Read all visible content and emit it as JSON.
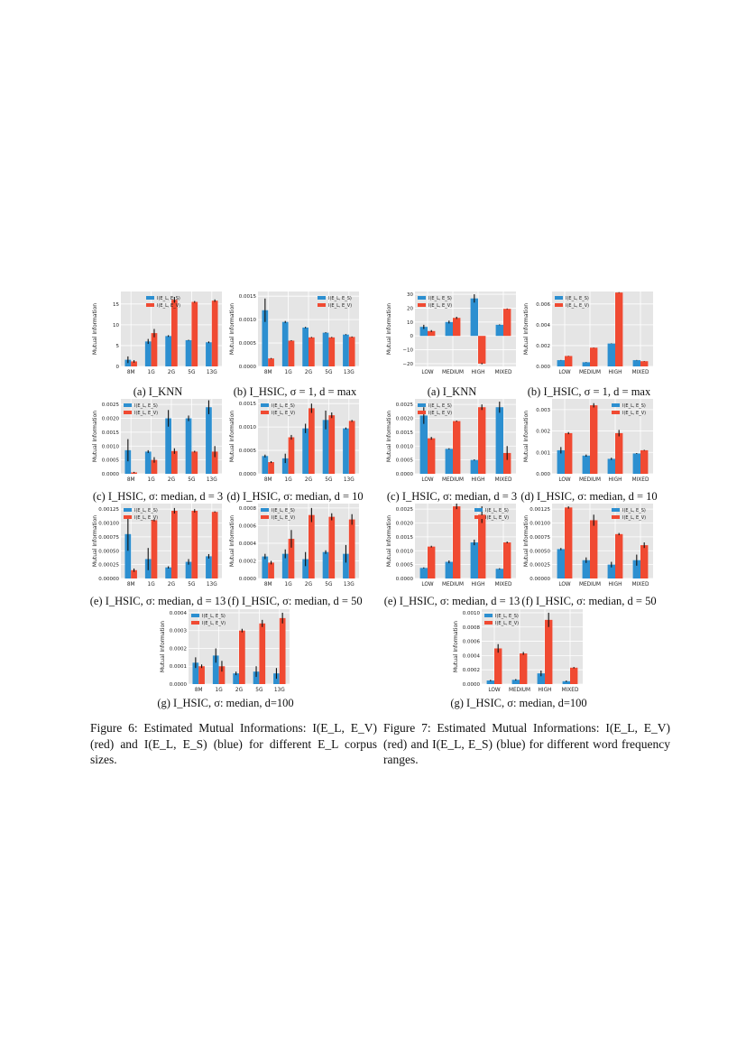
{
  "colors": {
    "blue": "#2c8fd0",
    "red": "#f04a32",
    "bg": "#e5e5e5",
    "grid": "#ffffff",
    "error": "#111111"
  },
  "figure6": {
    "caption": "Figure 6: Estimated Mutual Informations: I(E_L, E_V) (red) and I(E_L, E_S) (blue) for different E_L corpus sizes."
  },
  "figure7": {
    "caption": "Figure 7: Estimated Mutual Informations: I(E_L, E_V) (red) and I(E_L, E_S) (blue) for different word frequency ranges."
  },
  "chart_data": [
    {
      "id": "f6a",
      "figure": "Figure 6",
      "caption": "(a) I_KNN",
      "type": "bar",
      "categories": [
        "8M",
        "1G",
        "2G",
        "5G",
        "13G"
      ],
      "ylabel": "Mutual Information",
      "ylim": [
        0,
        18
      ],
      "yticks": [
        "0",
        "5",
        "10",
        "15"
      ],
      "legend": [
        "I(E_L, E_S)",
        "I(E_L, E_V)"
      ],
      "legend_loc": "top-center",
      "series": [
        {
          "name": "I(E_L, E_S)",
          "values": [
            1.6,
            6.0,
            7.3,
            6.3,
            5.8
          ],
          "errors": [
            0.8,
            0.6,
            0.2,
            0.1,
            0.2
          ]
        },
        {
          "name": "I(E_L, E_V)",
          "values": [
            1.2,
            8.0,
            16.0,
            15.5,
            15.8
          ],
          "errors": [
            0.3,
            1.0,
            0.7,
            0.2,
            0.3
          ]
        }
      ]
    },
    {
      "id": "f6b",
      "figure": "Figure 6",
      "caption": "(b) I_HSIC, σ = 1, d = max",
      "type": "bar",
      "categories": [
        "8M",
        "1G",
        "2G",
        "5G",
        "13G"
      ],
      "ylabel": "Mutual Information",
      "ylim": [
        0,
        0.0016
      ],
      "yticks": [
        "0.0000",
        "0.0005",
        "0.0010",
        "0.0015"
      ],
      "legend": [
        "I(E_L, E_S)",
        "I(E_L, E_V)"
      ],
      "legend_loc": "top-right",
      "series": [
        {
          "name": "I(E_L, E_S)",
          "values": [
            0.0012,
            0.00095,
            0.00083,
            0.00072,
            0.00068
          ],
          "errors": [
            0.00025,
            2e-05,
            1.5e-05,
            1e-05,
            1e-05
          ]
        },
        {
          "name": "I(E_L, E_V)",
          "values": [
            0.00017,
            0.00055,
            0.00062,
            0.00062,
            0.00063
          ],
          "errors": [
            1e-05,
            1e-05,
            1e-05,
            1e-05,
            1e-05
          ]
        }
      ]
    },
    {
      "id": "f6c",
      "figure": "Figure 6",
      "caption": "(c) I_HSIC, σ: median, d = 3",
      "type": "bar",
      "categories": [
        "8M",
        "1G",
        "2G",
        "5G",
        "13G"
      ],
      "ylabel": "Mutual Information",
      "ylim": [
        0,
        0.0027
      ],
      "yticks": [
        "0.0000",
        "0.0005",
        "0.0010",
        "0.0015",
        "0.0020",
        "0.0025"
      ],
      "legend": [
        "I(E_L, E_S)",
        "I(E_L, E_V)"
      ],
      "legend_loc": "top-left",
      "series": [
        {
          "name": "I(E_L, E_S)",
          "values": [
            0.00085,
            0.0008,
            0.002,
            0.002,
            0.0024
          ],
          "errors": [
            0.0004,
            5e-05,
            0.0003,
            0.0001,
            0.00025
          ]
        },
        {
          "name": "I(E_L, E_V)",
          "values": [
            5e-05,
            0.0005,
            0.00082,
            0.0008,
            0.0008
          ],
          "errors": [
            2e-05,
            0.0001,
            0.0001,
            3e-05,
            0.0002
          ]
        }
      ]
    },
    {
      "id": "f6d",
      "figure": "Figure 6",
      "caption": "(d) I_HSIC, σ: median, d = 10",
      "type": "bar",
      "categories": [
        "8M",
        "1G",
        "2G",
        "5G",
        "13G"
      ],
      "ylabel": "Mutual Information",
      "ylim": [
        0,
        0.0016
      ],
      "yticks": [
        "0.0000",
        "0.0005",
        "0.0010",
        "0.0015"
      ],
      "legend": [
        "I(E_L, E_S)",
        "I(E_L, E_V)"
      ],
      "legend_loc": "top-left",
      "series": [
        {
          "name": "I(E_L, E_S)",
          "values": [
            0.00038,
            0.00033,
            0.00097,
            0.00115,
            0.00097
          ],
          "errors": [
            3e-05,
            0.0001,
            0.0001,
            0.0002,
            2e-05
          ]
        },
        {
          "name": "I(E_L, E_V)",
          "values": [
            0.00025,
            0.00078,
            0.0014,
            0.00125,
            0.00113
          ],
          "errors": [
            2e-05,
            5e-05,
            0.0001,
            6e-05,
            2e-05
          ]
        }
      ]
    },
    {
      "id": "f6e",
      "figure": "Figure 6",
      "caption": "(e) I_HSIC, σ: median, d = 13",
      "type": "bar",
      "categories": [
        "8M",
        "1G",
        "2G",
        "5G",
        "13G"
      ],
      "ylabel": "Mutual Information",
      "ylim": [
        0,
        0.00135
      ],
      "yticks": [
        "0.00000",
        "0.00025",
        "0.00050",
        "0.00075",
        "0.00100",
        "0.00125"
      ],
      "legend": [
        "I(E_L, E_S)",
        "I(E_L, E_V)"
      ],
      "legend_loc": "top-left",
      "series": [
        {
          "name": "I(E_L, E_S)",
          "values": [
            0.0008,
            0.00035,
            0.0002,
            0.0003,
            0.0004
          ],
          "errors": [
            0.0003,
            0.0002,
            2e-05,
            5e-05,
            4e-05
          ]
        },
        {
          "name": "I(E_L, E_V)",
          "values": [
            0.00015,
            0.00105,
            0.00122,
            0.00122,
            0.0012
          ],
          "errors": [
            3e-05,
            2e-05,
            5e-05,
            3e-05,
            1e-05
          ]
        }
      ]
    },
    {
      "id": "f6f",
      "figure": "Figure 6",
      "caption": "(f) I_HSIC, σ: median, d = 50",
      "type": "bar",
      "categories": [
        "8M",
        "1G",
        "2G",
        "5G",
        "13G"
      ],
      "ylabel": "Mutual Information",
      "ylim": [
        0,
        0.00085
      ],
      "yticks": [
        "0.0000",
        "0.0002",
        "0.0004",
        "0.0006",
        "0.0008"
      ],
      "legend": [
        "I(E_L, E_S)",
        "I(E_L, E_V)"
      ],
      "legend_loc": "top-left",
      "series": [
        {
          "name": "I(E_L, E_S)",
          "values": [
            0.00025,
            0.00028,
            0.00022,
            0.0003,
            0.00028
          ],
          "errors": [
            3e-05,
            5e-05,
            8e-05,
            2e-05,
            0.0001
          ]
        },
        {
          "name": "I(E_L, E_V)",
          "values": [
            0.00018,
            0.00045,
            0.00072,
            0.0007,
            0.00067
          ],
          "errors": [
            2e-05,
            0.0001,
            8e-05,
            4e-05,
            6e-05
          ]
        }
      ]
    },
    {
      "id": "f6g",
      "figure": "Figure 6",
      "caption": "(g) I_HSIC, σ: median, d=100",
      "type": "bar",
      "categories": [
        "8M",
        "1G",
        "2G",
        "5G",
        "13G"
      ],
      "ylabel": "Mutual Information",
      "ylim": [
        0,
        0.00042
      ],
      "yticks": [
        "0.0000",
        "0.0001",
        "0.0002",
        "0.0003",
        "0.0004"
      ],
      "legend": [
        "I(E_L, E_S)",
        "I(E_L, E_V)"
      ],
      "legend_loc": "top-left",
      "series": [
        {
          "name": "I(E_L, E_S)",
          "values": [
            0.00012,
            0.00016,
            6e-05,
            7e-05,
            6e-05
          ],
          "errors": [
            3e-05,
            4e-05,
            1e-05,
            3e-05,
            3e-05
          ]
        },
        {
          "name": "I(E_L, E_V)",
          "values": [
            0.0001,
            0.0001,
            0.0003,
            0.00034,
            0.00037
          ],
          "errors": [
            1e-05,
            3e-05,
            1e-05,
            2e-05,
            3e-05
          ]
        }
      ]
    },
    {
      "id": "f7a",
      "figure": "Figure 7",
      "caption": "(a) I_KNN",
      "type": "bar",
      "categories": [
        "LOW",
        "MEDIUM",
        "HIGH",
        "MIXED"
      ],
      "ylabel": "Mutual Information",
      "ylim": [
        -22,
        32
      ],
      "yticks": [
        "−20",
        "−10",
        "0",
        "10",
        "20",
        "30"
      ],
      "legend": [
        "I(E_L, E_S)",
        "I(E_L, E_V)"
      ],
      "legend_loc": "top-left",
      "series": [
        {
          "name": "I(E_L, E_S)",
          "values": [
            6.5,
            10,
            27,
            8
          ],
          "errors": [
            1.5,
            1.0,
            3.0,
            0.3
          ]
        },
        {
          "name": "I(E_L, E_V)",
          "values": [
            3.5,
            13,
            -20,
            19.5
          ],
          "errors": [
            0.7,
            0.8,
            0.5,
            0.3
          ]
        }
      ]
    },
    {
      "id": "f7b",
      "figure": "Figure 7",
      "caption": "(b) I_HSIC, σ = 1, d = max",
      "type": "bar",
      "categories": [
        "LOW",
        "MEDIUM",
        "HIGH",
        "MIXED"
      ],
      "ylabel": "Mutual Information",
      "ylim": [
        0,
        0.0072
      ],
      "yticks": [
        "0.000",
        "0.002",
        "0.004",
        "0.006"
      ],
      "legend": [
        "I(E_L, E_S)",
        "I(E_L, E_V)"
      ],
      "legend_loc": "top-left",
      "series": [
        {
          "name": "I(E_L, E_S)",
          "values": [
            0.0006,
            0.0004,
            0.0022,
            0.0006
          ],
          "errors": [
            2e-05,
            2e-05,
            2e-05,
            2e-05
          ]
        },
        {
          "name": "I(E_L, E_V)",
          "values": [
            0.001,
            0.0018,
            0.0071,
            0.0005
          ],
          "errors": [
            2e-05,
            2e-05,
            3e-05,
            2e-05
          ]
        }
      ]
    },
    {
      "id": "f7c",
      "figure": "Figure 7",
      "caption": "(c) I_HSIC, σ: median, d = 3",
      "type": "bar",
      "categories": [
        "LOW",
        "MEDIUM",
        "HIGH",
        "MIXED"
      ],
      "ylabel": "Mutual Information",
      "ylim": [
        0,
        0.0027
      ],
      "yticks": [
        "0.0000",
        "0.0005",
        "0.0010",
        "0.0015",
        "0.0020",
        "0.0025"
      ],
      "legend": [
        "I(E_L, E_S)",
        "I(E_L, E_V)"
      ],
      "legend_loc": "top-left",
      "series": [
        {
          "name": "I(E_L, E_S)",
          "values": [
            0.0021,
            0.0009,
            0.0005,
            0.0024
          ],
          "errors": [
            0.0003,
            2e-05,
            2e-05,
            0.0002
          ]
        },
        {
          "name": "I(E_L, E_V)",
          "values": [
            0.00128,
            0.0019,
            0.0024,
            0.00075
          ],
          "errors": [
            5e-05,
            2e-05,
            0.0001,
            0.00025
          ]
        }
      ]
    },
    {
      "id": "f7d",
      "figure": "Figure 7",
      "caption": "(d) I_HSIC, σ: median, d = 10",
      "type": "bar",
      "categories": [
        "LOW",
        "MEDIUM",
        "HIGH",
        "MIXED"
      ],
      "ylabel": "Mutual Information",
      "ylim": [
        0,
        0.0035
      ],
      "yticks": [
        "0.000",
        "0.001",
        "0.002",
        "0.003"
      ],
      "legend": [
        "I(E_L, E_S)",
        "I(E_L, E_V)"
      ],
      "legend_loc": "top-right",
      "series": [
        {
          "name": "I(E_L, E_S)",
          "values": [
            0.0011,
            0.00085,
            0.0007,
            0.00095
          ],
          "errors": [
            0.00015,
            5e-05,
            5e-05,
            2e-05
          ]
        },
        {
          "name": "I(E_L, E_V)",
          "values": [
            0.0019,
            0.0032,
            0.0019,
            0.0011
          ],
          "errors": [
            5e-05,
            0.0001,
            0.00015,
            2e-05
          ]
        }
      ]
    },
    {
      "id": "f7e",
      "figure": "Figure 7",
      "caption": "(e) I_HSIC, σ: median, d = 13",
      "type": "bar",
      "categories": [
        "LOW",
        "MEDIUM",
        "HIGH",
        "MIXED"
      ],
      "ylabel": "Mutual Information",
      "ylim": [
        0,
        0.0027
      ],
      "yticks": [
        "0.0000",
        "0.0005",
        "0.0010",
        "0.0015",
        "0.0020",
        "0.0025"
      ],
      "legend": [
        "I(E_L, E_S)",
        "I(E_L, E_V)"
      ],
      "legend_loc": "top-right",
      "series": [
        {
          "name": "I(E_L, E_S)",
          "values": [
            0.00038,
            0.0006,
            0.0013,
            0.00035
          ],
          "errors": [
            2e-05,
            5e-05,
            0.0001,
            2e-05
          ]
        },
        {
          "name": "I(E_L, E_V)",
          "values": [
            0.00115,
            0.0026,
            0.0023,
            0.0013
          ],
          "errors": [
            3e-05,
            0.0001,
            0.0003,
            3e-05
          ]
        }
      ]
    },
    {
      "id": "f7f",
      "figure": "Figure 7",
      "caption": "(f) I_HSIC, σ: median, d = 50",
      "type": "bar",
      "categories": [
        "LOW",
        "MEDIUM",
        "HIGH",
        "MIXED"
      ],
      "ylabel": "Mutual Information",
      "ylim": [
        0,
        0.00135
      ],
      "yticks": [
        "0.00000",
        "0.00025",
        "0.00050",
        "0.00075",
        "0.00100",
        "0.00125"
      ],
      "legend": [
        "I(E_L, E_S)",
        "I(E_L, E_V)"
      ],
      "legend_loc": "top-right",
      "series": [
        {
          "name": "I(E_L, E_S)",
          "values": [
            0.00053,
            0.00033,
            0.00025,
            0.00033
          ],
          "errors": [
            2e-05,
            5e-05,
            5e-05,
            0.0001
          ]
        },
        {
          "name": "I(E_L, E_V)",
          "values": [
            0.00128,
            0.00105,
            0.0008,
            0.0006
          ],
          "errors": [
            2e-05,
            0.0001,
            2e-05,
            5e-05
          ]
        }
      ]
    },
    {
      "id": "f7g",
      "figure": "Figure 7",
      "caption": "(g) I_HSIC, σ: median, d=100",
      "type": "bar",
      "categories": [
        "LOW",
        "MEDIUM",
        "HIGH",
        "MIXED"
      ],
      "ylabel": "Mutual Information",
      "ylim": [
        0,
        0.00105
      ],
      "yticks": [
        "0.0000",
        "0.0002",
        "0.0004",
        "0.0006",
        "0.0008",
        "0.0010"
      ],
      "legend": [
        "I(E_L, E_S)",
        "I(E_L, E_V)"
      ],
      "legend_loc": "top-left",
      "series": [
        {
          "name": "I(E_L, E_S)",
          "values": [
            5e-05,
            6e-05,
            0.00015,
            4e-05
          ],
          "errors": [
            1e-05,
            1e-05,
            4e-05,
            1e-05
          ]
        },
        {
          "name": "I(E_L, E_V)",
          "values": [
            0.0005,
            0.00043,
            0.0009,
            0.00023
          ],
          "errors": [
            6e-05,
            2e-05,
            0.0001,
            1e-05
          ]
        }
      ]
    }
  ]
}
